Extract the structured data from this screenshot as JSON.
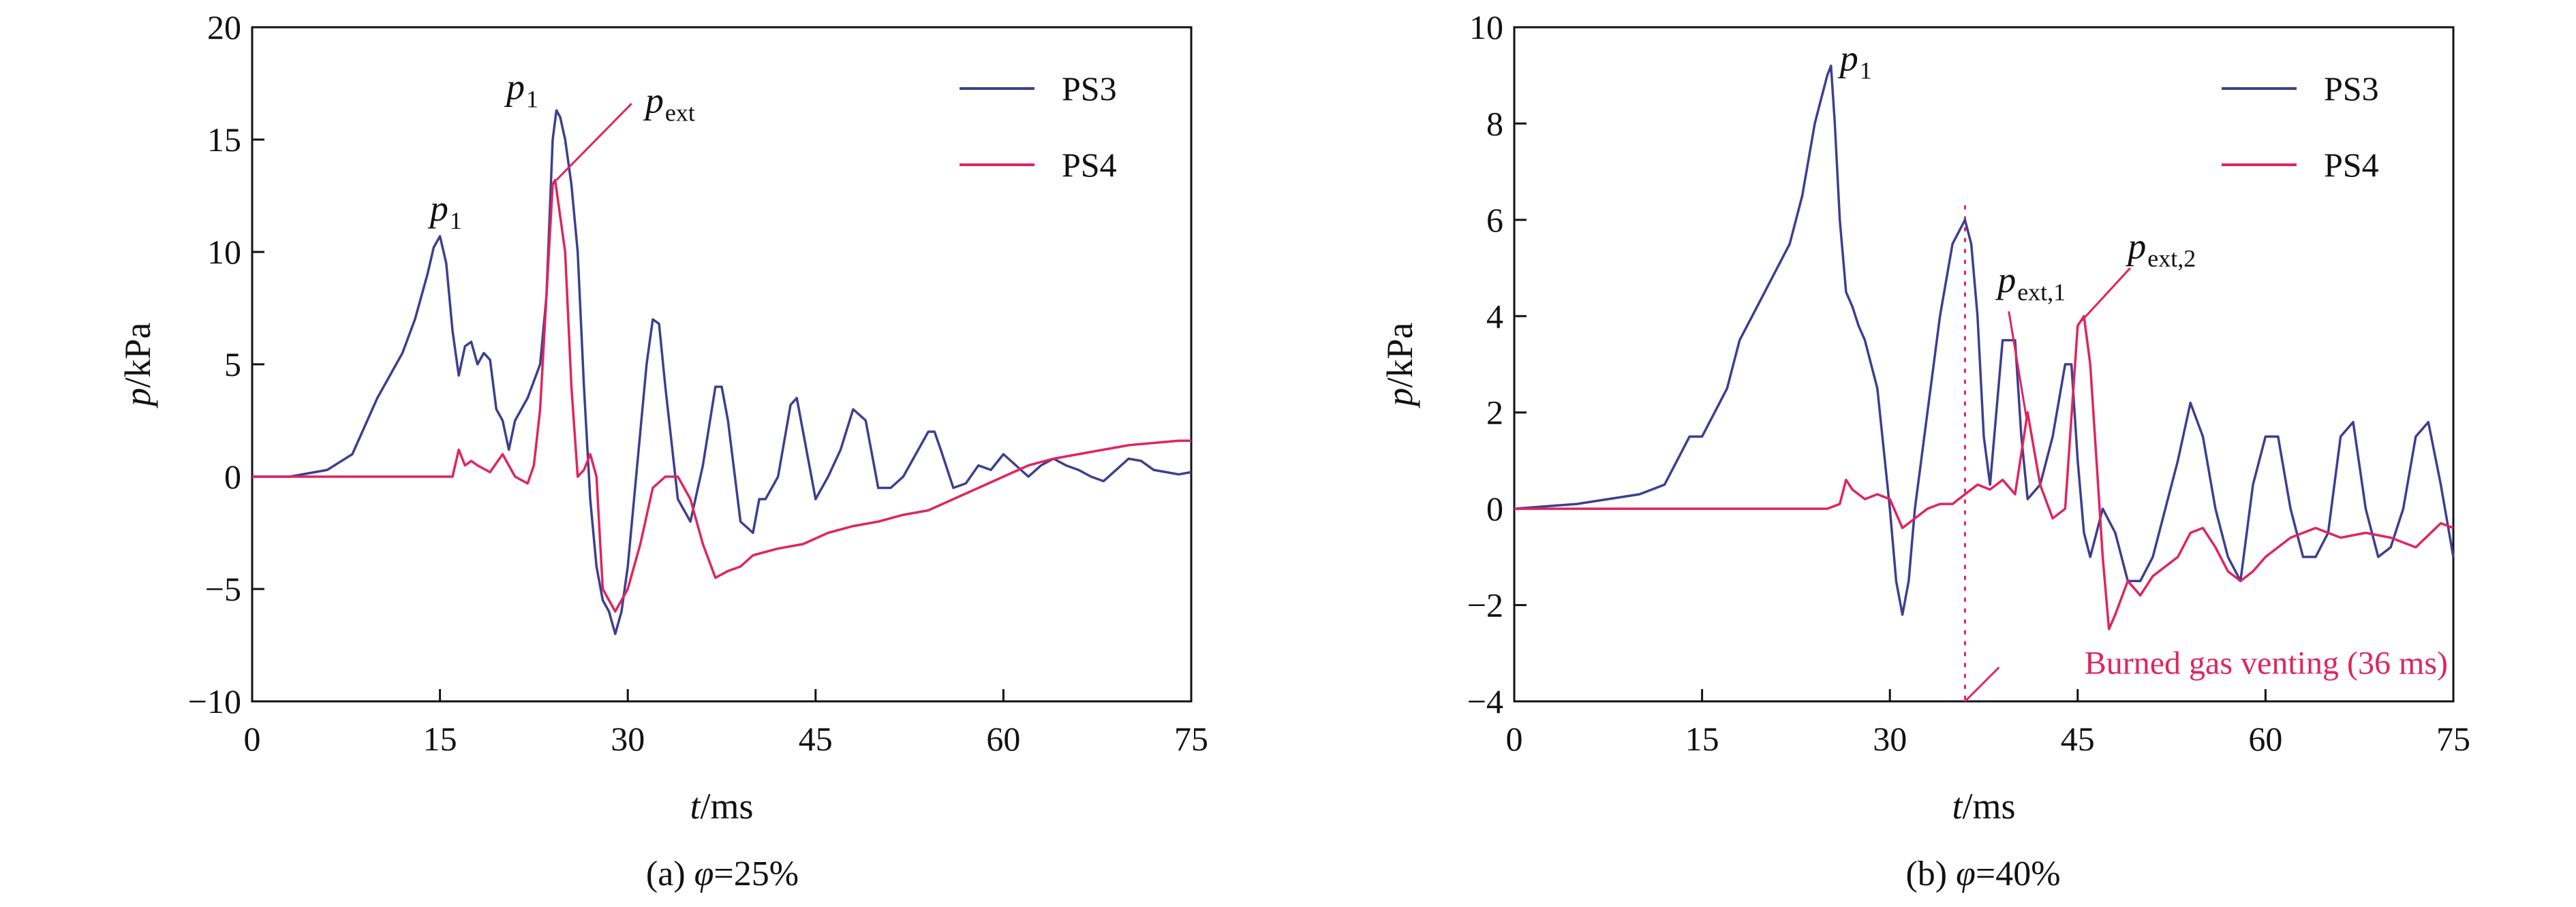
{
  "chart_data": [
    {
      "type": "line",
      "caption": "(a) φ=25%",
      "caption_prefix": "(a) ",
      "caption_symbol": "φ",
      "caption_value": "=25%",
      "xlabel_italic": "t",
      "xlabel_unit": "/ms",
      "ylabel_italic": "p",
      "ylabel_unit": "/kPa",
      "xlim": [
        0,
        75
      ],
      "ylim": [
        -10,
        20
      ],
      "xticks": [
        0,
        15,
        30,
        45,
        60,
        75
      ],
      "yticks": [
        -10,
        -5,
        0,
        5,
        10,
        15,
        20
      ],
      "ytick_labels": [
        "−10",
        "−5",
        "0",
        "5",
        "10",
        "15",
        "20"
      ],
      "grid": false,
      "legend_position": "top-right",
      "series": [
        {
          "name": "PS3",
          "color": "#3c3f8f",
          "x": [
            0,
            3,
            6,
            8,
            10,
            11,
            12,
            13,
            14,
            14.5,
            15,
            15.5,
            16,
            16.5,
            17,
            17.5,
            18,
            18.5,
            19,
            19.5,
            20,
            20.5,
            21,
            22,
            23,
            23.5,
            24,
            24.3,
            24.6,
            25,
            25.5,
            26,
            26.5,
            27,
            27.5,
            28,
            28.5,
            29,
            29.5,
            30,
            30.5,
            31,
            31.5,
            32,
            32.5,
            33,
            33.5,
            34,
            35,
            36,
            37,
            37.5,
            38,
            39,
            40,
            40.5,
            41,
            42,
            43,
            43.5,
            44,
            45,
            46,
            47,
            48,
            49,
            50,
            51,
            52,
            53,
            54,
            54.5,
            55,
            56,
            57,
            58,
            59,
            60,
            61,
            62,
            63,
            64,
            65,
            66,
            67,
            68,
            69,
            70,
            71,
            72,
            73,
            74,
            75
          ],
          "values": [
            0,
            0,
            0.3,
            1,
            3.5,
            4.5,
            5.5,
            7,
            9,
            10.2,
            10.7,
            9.5,
            6.5,
            4.5,
            5.8,
            6,
            5,
            5.5,
            5.2,
            3,
            2.5,
            1.2,
            2.5,
            3.5,
            5,
            8,
            15,
            16.3,
            16,
            15,
            13,
            10,
            4,
            -1,
            -4,
            -5.5,
            -6,
            -7,
            -6,
            -4,
            -1,
            2,
            5,
            7,
            6.8,
            4,
            1.5,
            -1,
            -2,
            0.5,
            4,
            4,
            2.5,
            -2,
            -2.5,
            -1,
            -1,
            0,
            3.2,
            3.5,
            2,
            -1,
            0,
            1.2,
            3,
            2.5,
            -0.5,
            -0.5,
            0,
            1,
            2,
            2,
            1.2,
            -0.5,
            -0.3,
            0.5,
            0.3,
            1,
            0.5,
            0,
            0.5,
            0.8,
            0.5,
            0.3,
            0,
            -0.2,
            0.3,
            0.8,
            0.7,
            0.3,
            0.2,
            0.1,
            0.2
          ]
        },
        {
          "name": "PS4",
          "color": "#e0245e",
          "x": [
            0,
            5,
            10,
            14,
            16,
            16.5,
            17,
            17.5,
            18,
            19,
            20,
            21,
            22,
            22.5,
            23,
            23.5,
            24,
            24.2,
            24.5,
            25,
            25.5,
            26,
            26.5,
            27,
            27.5,
            28,
            29,
            30,
            31,
            32,
            33,
            34,
            35,
            36,
            37,
            38,
            39,
            40,
            42,
            44,
            46,
            48,
            50,
            52,
            54,
            56,
            58,
            60,
            62,
            64,
            66,
            68,
            70,
            72,
            74,
            75
          ],
          "values": [
            0,
            0,
            0,
            0,
            0,
            1.2,
            0.5,
            0.7,
            0.5,
            0.2,
            1,
            0,
            -0.3,
            0.5,
            3,
            8,
            13,
            13.2,
            12,
            10,
            4,
            0,
            0.3,
            1,
            0,
            -5,
            -6,
            -5,
            -3,
            -0.5,
            0,
            0,
            -1,
            -3,
            -4.5,
            -4.2,
            -4,
            -3.5,
            -3.2,
            -3,
            -2.5,
            -2.2,
            -2,
            -1.7,
            -1.5,
            -1,
            -0.5,
            0,
            0.5,
            0.8,
            1,
            1.2,
            1.4,
            1.5,
            1.6,
            1.6
          ]
        }
      ],
      "annotations": [
        {
          "text": "p",
          "sub": "1",
          "x": 14.2,
          "y": 11.4
        },
        {
          "text": "p",
          "sub": "1",
          "x": 20.3,
          "y": 16.8
        },
        {
          "text": "p",
          "sub": "ext",
          "x": 31.4,
          "y": 16.2
        }
      ]
    },
    {
      "type": "line",
      "caption": "(b) φ=40%",
      "caption_prefix": "(b) ",
      "caption_symbol": "φ",
      "caption_value": "=40%",
      "xlabel_italic": "t",
      "xlabel_unit": "/ms",
      "ylabel_italic": "p",
      "ylabel_unit": "/kPa",
      "xlim": [
        0,
        75
      ],
      "ylim": [
        -4,
        10
      ],
      "xticks": [
        0,
        15,
        30,
        45,
        60,
        75
      ],
      "yticks": [
        -4,
        -2,
        0,
        2,
        4,
        6,
        8,
        10
      ],
      "ytick_labels": [
        "−4",
        "−2",
        "0",
        "2",
        "4",
        "6",
        "8",
        "10"
      ],
      "grid": false,
      "legend_position": "top-right",
      "vent_line_x": 36,
      "vent_label": "Burned gas venting (36 ms)",
      "series": [
        {
          "name": "PS3",
          "color": "#3c3f8f",
          "x": [
            0,
            5,
            10,
            12,
            13,
            14,
            15,
            16,
            17,
            18,
            19,
            20,
            21,
            22,
            23,
            24,
            24.5,
            25,
            25.3,
            25.6,
            26,
            26.5,
            27,
            27.5,
            28,
            29,
            30,
            30.5,
            31,
            31.5,
            32,
            33,
            34,
            35,
            36,
            36.5,
            37,
            37.5,
            38,
            39,
            40,
            40.5,
            41,
            42,
            43,
            44,
            44.5,
            45,
            45.5,
            46,
            46.5,
            47,
            48,
            49,
            50,
            51,
            52,
            53,
            54,
            55,
            56,
            57,
            58,
            59,
            60,
            61,
            62,
            63,
            64,
            65,
            66,
            67,
            68,
            69,
            70,
            71,
            72,
            73,
            74,
            75
          ],
          "values": [
            0,
            0.1,
            0.3,
            0.5,
            1,
            1.5,
            1.5,
            2,
            2.5,
            3.5,
            4,
            4.5,
            5,
            5.5,
            6.5,
            8,
            8.5,
            9,
            9.2,
            8,
            6,
            4.5,
            4.2,
            3.8,
            3.5,
            2.5,
            0,
            -1.5,
            -2.2,
            -1.5,
            0,
            2,
            4,
            5.5,
            6,
            5.5,
            4,
            1.5,
            0.5,
            3.5,
            3.5,
            1.5,
            0.2,
            0.5,
            1.5,
            3,
            3,
            1,
            -0.5,
            -1,
            -0.5,
            0,
            -0.5,
            -1.5,
            -1.5,
            -1,
            0,
            1,
            2.2,
            1.5,
            0,
            -1,
            -1.5,
            0.5,
            1.5,
            1.5,
            0,
            -1,
            -1,
            -0.5,
            1.5,
            1.8,
            0,
            -1,
            -0.8,
            0,
            1.5,
            1.8,
            0.5,
            -1
          ]
        },
        {
          "name": "PS4",
          "color": "#e0245e",
          "x": [
            0,
            10,
            20,
            25,
            26,
            26.5,
            27,
            28,
            29,
            30,
            31,
            32,
            33,
            34,
            35,
            36,
            37,
            38,
            39,
            40,
            41,
            42,
            43,
            44,
            45,
            45.5,
            46,
            46.5,
            47,
            47.5,
            48,
            49,
            50,
            51,
            52,
            53,
            54,
            55,
            56,
            57,
            58,
            59,
            60,
            62,
            64,
            66,
            68,
            70,
            72,
            74,
            75
          ],
          "values": [
            0,
            0,
            0,
            0,
            0.1,
            0.6,
            0.4,
            0.2,
            0.3,
            0.2,
            -0.4,
            -0.2,
            0,
            0.1,
            0.1,
            0.3,
            0.5,
            0.4,
            0.6,
            0.3,
            2,
            0.5,
            -0.2,
            0,
            3.8,
            4,
            3,
            1,
            -1,
            -2.5,
            -2.2,
            -1.5,
            -1.8,
            -1.4,
            -1.2,
            -1,
            -0.5,
            -0.4,
            -0.8,
            -1.3,
            -1.5,
            -1.3,
            -1,
            -0.6,
            -0.4,
            -0.6,
            -0.5,
            -0.6,
            -0.8,
            -0.3,
            -0.4
          ]
        }
      ],
      "annotations": [
        {
          "text": "p",
          "sub": "1",
          "x": 26,
          "y": 9.1
        },
        {
          "text": "p",
          "sub": "ext,1",
          "x": 38.6,
          "y": 4.5
        },
        {
          "text": "p",
          "sub": "ext,2",
          "x": 49,
          "y": 5.2
        }
      ]
    }
  ]
}
